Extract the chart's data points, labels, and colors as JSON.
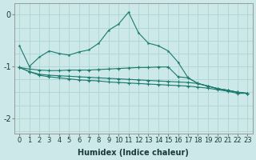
{
  "xlabel": "Humidex (Indice chaleur)",
  "background_color": "#cce8e8",
  "grid_color": "#aed4d4",
  "line_color": "#1a7a6e",
  "x_values": [
    0,
    1,
    2,
    3,
    4,
    5,
    6,
    7,
    8,
    9,
    10,
    11,
    12,
    13,
    14,
    15,
    16,
    17,
    18,
    19,
    20,
    21,
    22,
    23
  ],
  "line1": [
    -0.6,
    -1.0,
    -0.82,
    -0.7,
    -0.75,
    -0.78,
    -0.72,
    -0.68,
    -0.55,
    -0.3,
    -0.18,
    0.05,
    -0.35,
    -0.55,
    -0.6,
    -0.7,
    -0.92,
    -1.22,
    -1.33,
    -1.38,
    -1.43,
    -1.46,
    -1.5,
    -1.52
  ],
  "line2": [
    -1.02,
    -1.05,
    -1.07,
    -1.08,
    -1.08,
    -1.07,
    -1.07,
    -1.07,
    -1.06,
    -1.05,
    -1.04,
    -1.03,
    -1.02,
    -1.02,
    -1.01,
    -1.01,
    -1.2,
    -1.22,
    -1.33,
    -1.38,
    -1.43,
    -1.46,
    -1.5,
    -1.52
  ],
  "line3": [
    -1.02,
    -1.1,
    -1.15,
    -1.17,
    -1.18,
    -1.19,
    -1.2,
    -1.21,
    -1.22,
    -1.23,
    -1.24,
    -1.25,
    -1.26,
    -1.27,
    -1.28,
    -1.29,
    -1.3,
    -1.31,
    -1.33,
    -1.38,
    -1.43,
    -1.46,
    -1.5,
    -1.52
  ],
  "line4": [
    -1.02,
    -1.1,
    -1.17,
    -1.2,
    -1.22,
    -1.24,
    -1.26,
    -1.27,
    -1.28,
    -1.3,
    -1.31,
    -1.32,
    -1.33,
    -1.34,
    -1.35,
    -1.36,
    -1.37,
    -1.38,
    -1.4,
    -1.42,
    -1.45,
    -1.48,
    -1.52,
    -1.52
  ],
  "ylim": [
    -2.3,
    0.22
  ],
  "yticks": [
    0,
    -1,
    -2
  ],
  "xlim": [
    -0.5,
    23.5
  ],
  "tick_fontsize": 6,
  "xlabel_fontsize": 7
}
